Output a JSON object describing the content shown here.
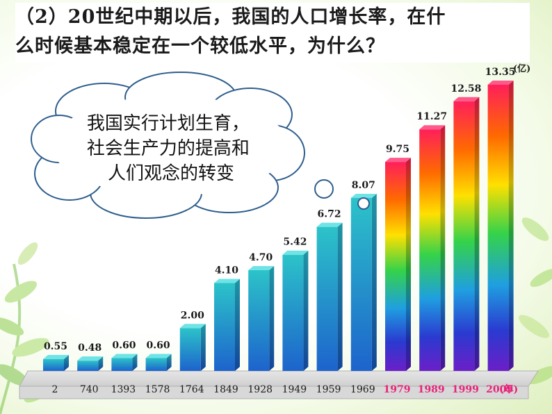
{
  "question": {
    "line1": "（2）20世纪中期以后，我国的人口增长率，在什",
    "line2": "么时候基本稳定在一个较低水平，为什么？"
  },
  "callout": {
    "lines": [
      "我国实行计划生育，",
      "社会生产力的提高和",
      "人们观念的转变"
    ]
  },
  "chart_data": {
    "type": "bar",
    "unit_label": "(亿)",
    "x_unit_label": "(年)",
    "categories": [
      "2",
      "740",
      "1393",
      "1578",
      "1764",
      "1849",
      "1928",
      "1949",
      "1959",
      "1969",
      "1979",
      "1989",
      "1999",
      "2009"
    ],
    "values": [
      0.55,
      0.48,
      0.6,
      0.6,
      2.0,
      4.1,
      4.7,
      5.42,
      6.72,
      8.07,
      9.75,
      11.27,
      12.58,
      13.35
    ],
    "value_labels": [
      "0.55",
      "0.48",
      "0.60",
      "0.60",
      "2.00",
      "4.10",
      "4.70",
      "5.42",
      "6.72",
      "8.07",
      "9.75",
      "11.27",
      "12.58",
      "13.35"
    ],
    "ylim": [
      0,
      13.35
    ],
    "colors": {
      "blue_top": "#2ab3c8",
      "blue_bottom": "#1e5fc8",
      "rainbow": [
        "#ff1f5a",
        "#ff6a00",
        "#ffe000",
        "#35d24a",
        "#1f9fe0",
        "#2a3ad0",
        "#6b1fc8"
      ],
      "floor": "#c8c8c8",
      "highlight_label": "#e8237a"
    }
  }
}
